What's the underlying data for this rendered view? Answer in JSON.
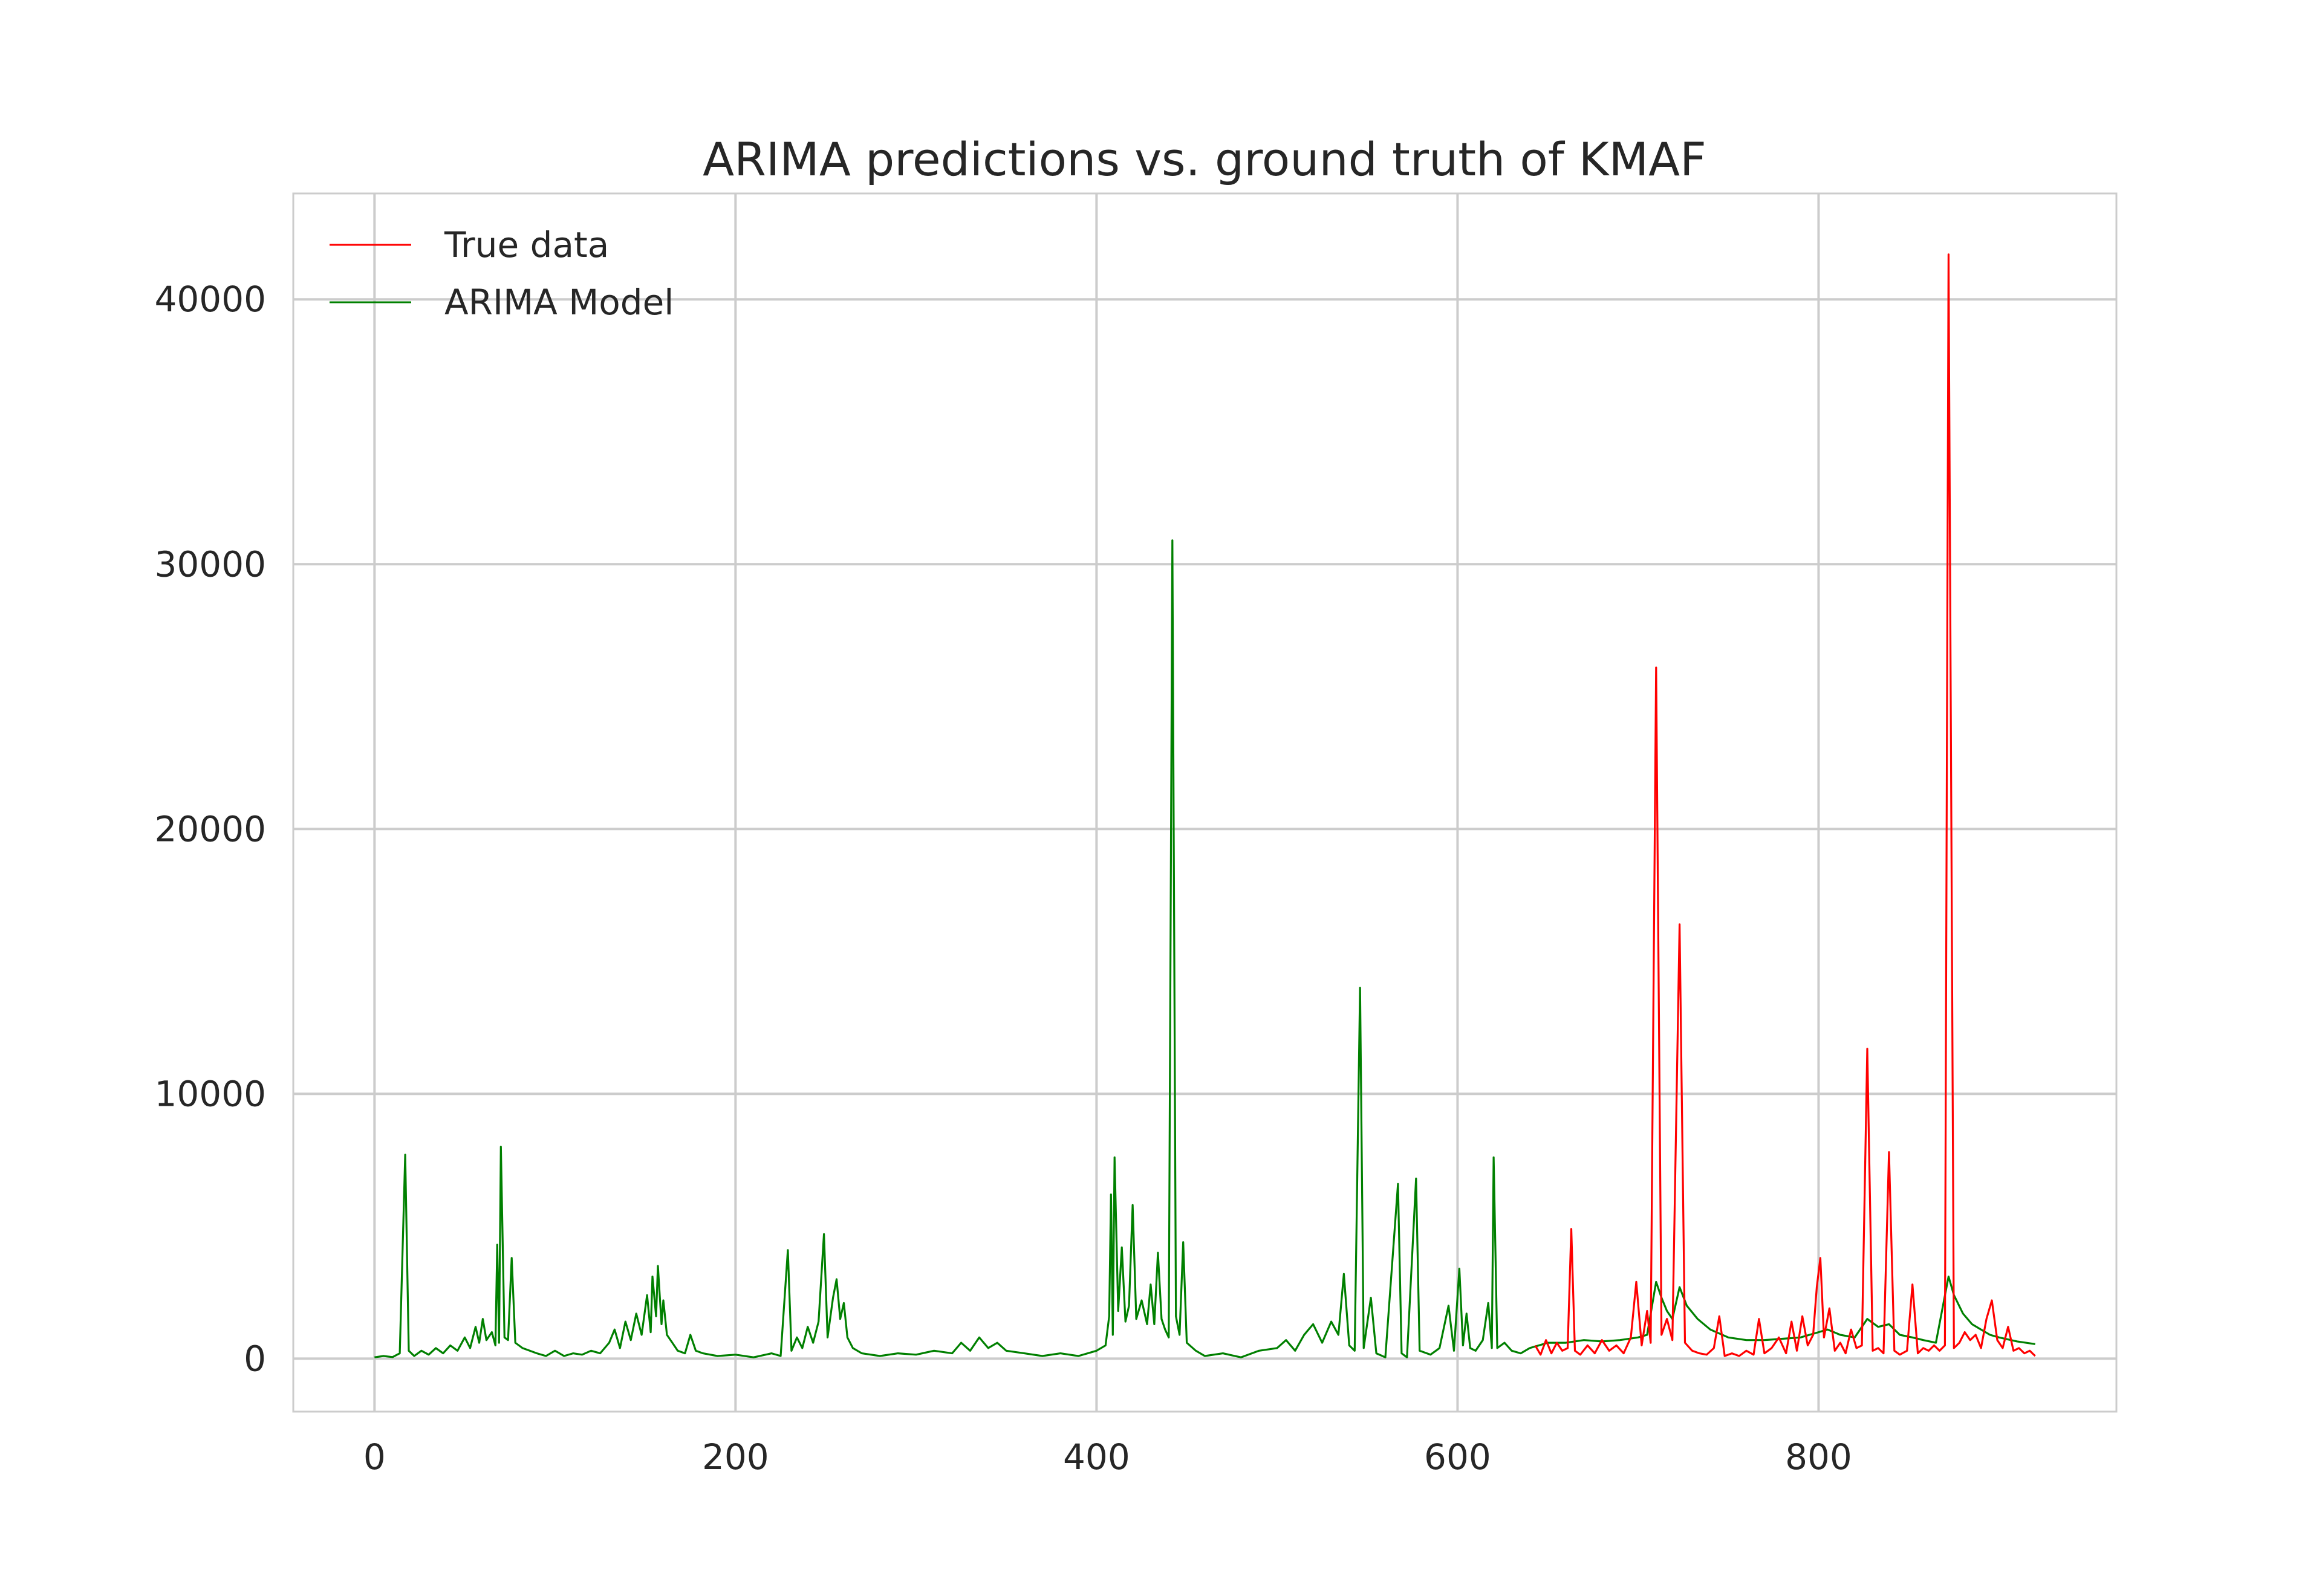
{
  "chart_data": {
    "type": "line",
    "title": "ARIMA predictions vs. ground truth of KMAF",
    "xlabel": "",
    "ylabel": "",
    "xlim": [
      -45,
      965
    ],
    "ylim": [
      -2000,
      44000
    ],
    "x_ticks": [
      0,
      200,
      400,
      600,
      800
    ],
    "y_ticks": [
      0,
      10000,
      20000,
      30000,
      40000
    ],
    "x_tick_labels": [
      "0",
      "200",
      "400",
      "600",
      "800"
    ],
    "y_tick_labels": [
      "0",
      "10000",
      "20000",
      "30000",
      "40000"
    ],
    "grid": true,
    "legend_position": "top-left",
    "series": [
      {
        "name": "True data",
        "color": "#ff0000",
        "points": [
          [
            643,
            500
          ],
          [
            646,
            150
          ],
          [
            649,
            700
          ],
          [
            652,
            200
          ],
          [
            655,
            600
          ],
          [
            658,
            300
          ],
          [
            661,
            400
          ],
          [
            663,
            4900
          ],
          [
            665,
            300
          ],
          [
            668,
            150
          ],
          [
            672,
            500
          ],
          [
            676,
            200
          ],
          [
            680,
            700
          ],
          [
            684,
            300
          ],
          [
            688,
            500
          ],
          [
            692,
            200
          ],
          [
            696,
            800
          ],
          [
            699,
            2900
          ],
          [
            702,
            500
          ],
          [
            705,
            1800
          ],
          [
            707,
            600
          ],
          [
            710,
            26100
          ],
          [
            713,
            900
          ],
          [
            716,
            1500
          ],
          [
            719,
            700
          ],
          [
            723,
            16400
          ],
          [
            726,
            600
          ],
          [
            730,
            300
          ],
          [
            734,
            200
          ],
          [
            738,
            150
          ],
          [
            742,
            400
          ],
          [
            745,
            1600
          ],
          [
            748,
            100
          ],
          [
            752,
            200
          ],
          [
            756,
            100
          ],
          [
            760,
            300
          ],
          [
            764,
            150
          ],
          [
            767,
            1500
          ],
          [
            770,
            200
          ],
          [
            774,
            400
          ],
          [
            778,
            800
          ],
          [
            782,
            200
          ],
          [
            785,
            1400
          ],
          [
            788,
            300
          ],
          [
            791,
            1600
          ],
          [
            794,
            500
          ],
          [
            797,
            900
          ],
          [
            799,
            2700
          ],
          [
            801,
            3800
          ],
          [
            803,
            800
          ],
          [
            806,
            1900
          ],
          [
            809,
            300
          ],
          [
            812,
            600
          ],
          [
            815,
            200
          ],
          [
            818,
            1100
          ],
          [
            821,
            400
          ],
          [
            824,
            500
          ],
          [
            827,
            11700
          ],
          [
            830,
            300
          ],
          [
            833,
            400
          ],
          [
            836,
            200
          ],
          [
            839,
            7800
          ],
          [
            842,
            300
          ],
          [
            845,
            150
          ],
          [
            849,
            300
          ],
          [
            852,
            2800
          ],
          [
            855,
            200
          ],
          [
            858,
            400
          ],
          [
            861,
            300
          ],
          [
            864,
            500
          ],
          [
            867,
            300
          ],
          [
            870,
            500
          ],
          [
            872,
            41700
          ],
          [
            875,
            400
          ],
          [
            878,
            600
          ],
          [
            881,
            1000
          ],
          [
            884,
            700
          ],
          [
            887,
            900
          ],
          [
            890,
            400
          ],
          [
            893,
            1500
          ],
          [
            896,
            2200
          ],
          [
            899,
            700
          ],
          [
            902,
            400
          ],
          [
            905,
            1200
          ],
          [
            908,
            300
          ],
          [
            911,
            400
          ],
          [
            914,
            200
          ],
          [
            917,
            300
          ],
          [
            920,
            100
          ]
        ]
      },
      {
        "name": "ARIMA Model",
        "color": "#008000",
        "points": [
          [
            0,
            50
          ],
          [
            5,
            100
          ],
          [
            10,
            60
          ],
          [
            14,
            200
          ],
          [
            17,
            7700
          ],
          [
            19,
            300
          ],
          [
            22,
            100
          ],
          [
            26,
            300
          ],
          [
            30,
            150
          ],
          [
            34,
            400
          ],
          [
            38,
            200
          ],
          [
            42,
            500
          ],
          [
            46,
            300
          ],
          [
            50,
            800
          ],
          [
            53,
            400
          ],
          [
            56,
            1200
          ],
          [
            58,
            600
          ],
          [
            60,
            1500
          ],
          [
            62,
            700
          ],
          [
            65,
            1000
          ],
          [
            67,
            500
          ],
          [
            68,
            4300
          ],
          [
            69,
            600
          ],
          [
            70,
            8000
          ],
          [
            72,
            800
          ],
          [
            74,
            700
          ],
          [
            76,
            3800
          ],
          [
            78,
            600
          ],
          [
            82,
            400
          ],
          [
            86,
            300
          ],
          [
            90,
            200
          ],
          [
            95,
            100
          ],
          [
            100,
            300
          ],
          [
            105,
            100
          ],
          [
            110,
            200
          ],
          [
            115,
            150
          ],
          [
            120,
            300
          ],
          [
            125,
            200
          ],
          [
            130,
            600
          ],
          [
            133,
            1100
          ],
          [
            136,
            400
          ],
          [
            139,
            1400
          ],
          [
            142,
            700
          ],
          [
            145,
            1700
          ],
          [
            148,
            900
          ],
          [
            151,
            2400
          ],
          [
            153,
            1000
          ],
          [
            154,
            3100
          ],
          [
            156,
            1600
          ],
          [
            157,
            3500
          ],
          [
            159,
            1300
          ],
          [
            160,
            2200
          ],
          [
            162,
            900
          ],
          [
            165,
            600
          ],
          [
            168,
            300
          ],
          [
            172,
            200
          ],
          [
            175,
            900
          ],
          [
            178,
            300
          ],
          [
            182,
            200
          ],
          [
            190,
            100
          ],
          [
            200,
            150
          ],
          [
            210,
            50
          ],
          [
            220,
            200
          ],
          [
            225,
            100
          ],
          [
            229,
            4100
          ],
          [
            231,
            300
          ],
          [
            234,
            800
          ],
          [
            237,
            400
          ],
          [
            240,
            1200
          ],
          [
            243,
            600
          ],
          [
            246,
            1400
          ],
          [
            249,
            4700
          ],
          [
            251,
            800
          ],
          [
            254,
            2300
          ],
          [
            256,
            3000
          ],
          [
            258,
            1500
          ],
          [
            260,
            2100
          ],
          [
            262,
            800
          ],
          [
            265,
            400
          ],
          [
            270,
            200
          ],
          [
            280,
            100
          ],
          [
            290,
            200
          ],
          [
            300,
            150
          ],
          [
            310,
            300
          ],
          [
            320,
            200
          ],
          [
            325,
            600
          ],
          [
            330,
            300
          ],
          [
            335,
            800
          ],
          [
            340,
            400
          ],
          [
            345,
            600
          ],
          [
            350,
            300
          ],
          [
            360,
            200
          ],
          [
            370,
            100
          ],
          [
            380,
            200
          ],
          [
            390,
            100
          ],
          [
            400,
            300
          ],
          [
            405,
            500
          ],
          [
            407,
            1600
          ],
          [
            408,
            6200
          ],
          [
            409,
            900
          ],
          [
            410,
            7600
          ],
          [
            412,
            1800
          ],
          [
            414,
            4200
          ],
          [
            416,
            1400
          ],
          [
            418,
            2000
          ],
          [
            420,
            5800
          ],
          [
            422,
            1500
          ],
          [
            425,
            2200
          ],
          [
            428,
            1300
          ],
          [
            430,
            2800
          ],
          [
            432,
            1300
          ],
          [
            434,
            4000
          ],
          [
            436,
            1500
          ],
          [
            438,
            1100
          ],
          [
            440,
            800
          ],
          [
            442,
            30900
          ],
          [
            444,
            1600
          ],
          [
            446,
            900
          ],
          [
            448,
            4400
          ],
          [
            450,
            600
          ],
          [
            455,
            300
          ],
          [
            460,
            100
          ],
          [
            470,
            200
          ],
          [
            480,
            50
          ],
          [
            490,
            300
          ],
          [
            500,
            400
          ],
          [
            505,
            700
          ],
          [
            510,
            300
          ],
          [
            515,
            900
          ],
          [
            520,
            1300
          ],
          [
            525,
            600
          ],
          [
            530,
            1400
          ],
          [
            534,
            900
          ],
          [
            537,
            3200
          ],
          [
            540,
            500
          ],
          [
            543,
            300
          ],
          [
            546,
            14000
          ],
          [
            548,
            400
          ],
          [
            552,
            2300
          ],
          [
            555,
            200
          ],
          [
            560,
            50
          ],
          [
            567,
            6600
          ],
          [
            569,
            200
          ],
          [
            572,
            50
          ],
          [
            577,
            6800
          ],
          [
            579,
            300
          ],
          [
            585,
            150
          ],
          [
            590,
            400
          ],
          [
            595,
            2000
          ],
          [
            598,
            300
          ],
          [
            601,
            3400
          ],
          [
            603,
            500
          ],
          [
            605,
            1700
          ],
          [
            607,
            400
          ],
          [
            610,
            300
          ],
          [
            614,
            700
          ],
          [
            617,
            2100
          ],
          [
            619,
            400
          ],
          [
            620,
            7600
          ],
          [
            622,
            400
          ],
          [
            626,
            600
          ],
          [
            630,
            300
          ],
          [
            635,
            200
          ],
          [
            640,
            400
          ],
          [
            650,
            600
          ],
          [
            660,
            600
          ],
          [
            670,
            700
          ],
          [
            680,
            650
          ],
          [
            690,
            700
          ],
          [
            700,
            800
          ],
          [
            705,
            900
          ],
          [
            710,
            2900
          ],
          [
            713,
            2300
          ],
          [
            716,
            1800
          ],
          [
            719,
            1500
          ],
          [
            723,
            2700
          ],
          [
            727,
            2000
          ],
          [
            733,
            1500
          ],
          [
            740,
            1100
          ],
          [
            750,
            800
          ],
          [
            760,
            700
          ],
          [
            770,
            700
          ],
          [
            780,
            750
          ],
          [
            790,
            800
          ],
          [
            800,
            1000
          ],
          [
            805,
            1100
          ],
          [
            812,
            900
          ],
          [
            820,
            800
          ],
          [
            827,
            1500
          ],
          [
            833,
            1200
          ],
          [
            839,
            1300
          ],
          [
            845,
            900
          ],
          [
            852,
            800
          ],
          [
            858,
            700
          ],
          [
            865,
            600
          ],
          [
            872,
            3100
          ],
          [
            875,
            2400
          ],
          [
            880,
            1700
          ],
          [
            885,
            1300
          ],
          [
            890,
            1100
          ],
          [
            895,
            900
          ],
          [
            900,
            800
          ],
          [
            910,
            650
          ],
          [
            920,
            550
          ]
        ]
      }
    ]
  }
}
